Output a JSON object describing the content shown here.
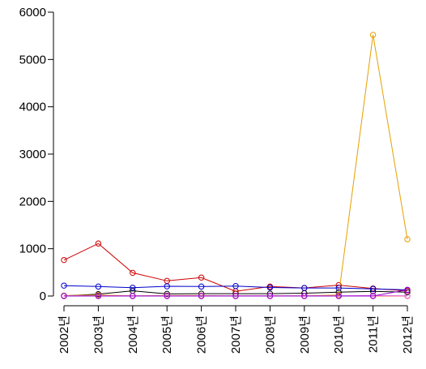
{
  "chart_data": {
    "type": "line",
    "title": "",
    "xlabel": "",
    "ylabel": "",
    "categories": [
      "2002년",
      "2003년",
      "2004년",
      "2005년",
      "2006년",
      "2007년",
      "2008년",
      "2009년",
      "2010년",
      "2011년",
      "2012년"
    ],
    "ylim": [
      0,
      6000
    ],
    "yticks": [
      0,
      1000,
      2000,
      3000,
      4000,
      5000,
      6000
    ],
    "grid": false,
    "legend": "none",
    "marker": "open-circle",
    "series": [
      {
        "color": "#000000",
        "values": [
          5,
          40,
          110,
          45,
          50,
          50,
          50,
          60,
          80,
          100,
          80
        ]
      },
      {
        "color": "#cc0000",
        "values": [
          760,
          1110,
          490,
          320,
          390,
          100,
          200,
          170,
          230,
          160,
          110
        ]
      },
      {
        "color": "#0000cc",
        "values": [
          220,
          200,
          175,
          205,
          200,
          210,
          180,
          170,
          170,
          150,
          130
        ]
      },
      {
        "color": "#ff6347",
        "values": [
          0,
          0,
          0,
          0,
          0,
          0,
          0,
          0,
          0,
          0,
          0
        ]
      },
      {
        "color": "#e69f00",
        "values": [
          10,
          20,
          5,
          10,
          10,
          5,
          5,
          5,
          20,
          5520,
          1200
        ]
      },
      {
        "color": "#dd66dd",
        "values": [
          5,
          5,
          5,
          5,
          5,
          5,
          5,
          5,
          5,
          10,
          5
        ]
      },
      {
        "color": "#9400d3",
        "values": [
          0,
          0,
          0,
          0,
          0,
          0,
          0,
          0,
          0,
          0,
          130
        ]
      }
    ]
  }
}
